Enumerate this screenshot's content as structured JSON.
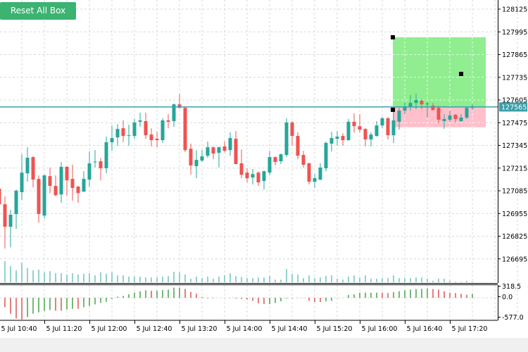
{
  "toolbar": {
    "reset_button_label": "Reset All Box"
  },
  "colors": {
    "bull": "#26a69a",
    "bear": "#ef5350",
    "volume": "#26a69a",
    "osc_up": "#1a8a1a",
    "osc_down": "#d62828",
    "price_line": "#3a9fa8",
    "buy_box": "#90ee90",
    "sell_box": "#ffc0cb",
    "button": "#3cb371",
    "grid": "#d8d8d8"
  },
  "chart_data": {
    "type": "candlestick",
    "timeframe_minutes": 5,
    "first_bar_time": "5 Jul 10:40",
    "price_axis": {
      "ticks": [
        "128125",
        "127995",
        "127865",
        "127735",
        "127605",
        "127475",
        "127345",
        "127215",
        "127085",
        "126955",
        "126825",
        "126695"
      ],
      "top": 128125,
      "step": 130
    },
    "current_price": {
      "value": 127565,
      "label": "127565"
    },
    "time_labels": [
      "5 Jul 10:40",
      "5 Jul 11:20",
      "5 Jul 12:00",
      "5 Jul 12:40",
      "5 Jul 13:20",
      "5 Jul 14:00",
      "5 Jul 14:40",
      "5 Jul 15:20",
      "5 Jul 16:00",
      "5 Jul 16:40",
      "5 Jul 17:20"
    ],
    "ohlc": [
      [
        127097,
        127121,
        126968,
        127008
      ],
      [
        127008,
        127052,
        126754,
        126879
      ],
      [
        126879,
        126976,
        126762,
        126948
      ],
      [
        126952,
        127093,
        126867,
        127085
      ],
      [
        127077,
        127294,
        127032,
        127189
      ],
      [
        127185,
        127334,
        127137,
        127274
      ],
      [
        127278,
        127282,
        127105,
        127149
      ],
      [
        127153,
        127173,
        126903,
        126952
      ],
      [
        126943,
        127178,
        126927,
        127173
      ],
      [
        127169,
        127218,
        127072,
        127113
      ],
      [
        127113,
        127173,
        127052,
        127060
      ],
      [
        127064,
        127250,
        127016,
        127222
      ],
      [
        127222,
        127226,
        127056,
        127145
      ],
      [
        127153,
        127234,
        127028,
        127101
      ],
      [
        127109,
        127113,
        127016,
        127072
      ],
      [
        127081,
        127197,
        127077,
        127153
      ],
      [
        127149,
        127310,
        127109,
        127242
      ],
      [
        127250,
        127318,
        127218,
        127252
      ],
      [
        127254,
        127274,
        127145,
        127214
      ],
      [
        127214,
        127395,
        127185,
        127363
      ],
      [
        127363,
        127459,
        127314,
        127387
      ],
      [
        127391,
        127467,
        127343,
        127439
      ],
      [
        127443,
        127488,
        127363,
        127399
      ],
      [
        127399,
        127463,
        127343,
        127403
      ],
      [
        127399,
        127496,
        127383,
        127476
      ],
      [
        127480,
        127532,
        127451,
        127488
      ],
      [
        127484,
        127532,
        127383,
        127403
      ],
      [
        127407,
        127443,
        127339,
        127375
      ],
      [
        127383,
        127423,
        127334,
        127375
      ],
      [
        127375,
        127500,
        127359,
        127488
      ],
      [
        127488,
        127524,
        127443,
        127480
      ],
      [
        127484,
        127584,
        127451,
        127580
      ],
      [
        127580,
        127641,
        127556,
        127560
      ],
      [
        127560,
        127564,
        127306,
        127318
      ],
      [
        127326,
        127355,
        127177,
        127230
      ],
      [
        127226,
        127318,
        127157,
        127262
      ],
      [
        127258,
        127318,
        127250,
        127282
      ],
      [
        127286,
        127367,
        127274,
        127334
      ],
      [
        127334,
        127339,
        127266,
        127298
      ],
      [
        127302,
        127339,
        127218,
        127334
      ],
      [
        127339,
        127367,
        127306,
        127314
      ],
      [
        127318,
        127419,
        127286,
        127387
      ],
      [
        127383,
        127427,
        127238,
        127238
      ],
      [
        127242,
        127322,
        127157,
        127177
      ],
      [
        127189,
        127214,
        127133,
        127157
      ],
      [
        127161,
        127210,
        127121,
        127181
      ],
      [
        127189,
        127197,
        127113,
        127133
      ],
      [
        127141,
        127201,
        127093,
        127197
      ],
      [
        127189,
        127314,
        127173,
        127278
      ],
      [
        127278,
        127282,
        127230,
        127250
      ],
      [
        127254,
        127298,
        127238,
        127294
      ],
      [
        127290,
        127500,
        127278,
        127476
      ],
      [
        127476,
        127484,
        127343,
        127399
      ],
      [
        127399,
        127419,
        127266,
        127286
      ],
      [
        127290,
        127314,
        127218,
        127234
      ],
      [
        127242,
        127246,
        127121,
        127137
      ],
      [
        127137,
        127181,
        127101,
        127157
      ],
      [
        127149,
        127242,
        127145,
        127218
      ],
      [
        127214,
        127367,
        127197,
        127359
      ],
      [
        127355,
        127423,
        127310,
        127387
      ],
      [
        127383,
        127427,
        127343,
        127395
      ],
      [
        127399,
        127415,
        127343,
        127375
      ],
      [
        127375,
        127496,
        127371,
        127480
      ],
      [
        127480,
        127528,
        127419,
        127455
      ],
      [
        127455,
        127524,
        127419,
        127435
      ],
      [
        127439,
        127443,
        127339,
        127379
      ],
      [
        127379,
        127419,
        127339,
        127407
      ],
      [
        127399,
        127484,
        127395,
        127459
      ],
      [
        127459,
        127508,
        127443,
        127500
      ],
      [
        127500,
        127508,
        127379,
        127403
      ],
      [
        127403,
        127536,
        127359,
        127488
      ],
      [
        127480,
        127560,
        127435,
        127544
      ],
      [
        127544,
        127592,
        127524,
        127564
      ],
      [
        127568,
        127633,
        127544,
        127588
      ],
      [
        127588,
        127641,
        127552,
        127605
      ],
      [
        127601,
        127609,
        127552,
        127580
      ],
      [
        127580,
        127596,
        127504,
        127584
      ],
      [
        127572,
        127588,
        127544,
        127548
      ],
      [
        127560,
        127572,
        127472,
        127492
      ],
      [
        127484,
        127524,
        127439,
        127496
      ],
      [
        127492,
        127544,
        127480,
        127516
      ],
      [
        127520,
        127524,
        127476,
        127496
      ],
      [
        127484,
        127524,
        127480,
        127504
      ],
      [
        127504,
        127564,
        127496,
        127560
      ],
      [
        127560,
        127580,
        127548,
        127565
      ]
    ],
    "volume_relative": [
      80,
      100,
      77,
      57,
      93,
      67,
      57,
      60,
      47,
      53,
      43,
      43,
      37,
      43,
      37,
      40,
      43,
      33,
      47,
      40,
      47,
      33,
      33,
      27,
      27,
      27,
      23,
      23,
      23,
      27,
      30,
      50,
      47,
      37,
      17,
      27,
      20,
      27,
      17,
      27,
      33,
      43,
      30,
      25,
      20,
      20,
      23,
      23,
      30,
      13,
      13,
      63,
      40,
      37,
      20,
      33,
      20,
      23,
      30,
      33,
      17,
      13,
      27,
      33,
      23,
      33,
      17,
      17,
      20,
      20,
      33,
      20,
      20,
      20,
      23,
      23,
      17,
      7,
      17,
      17,
      7,
      3,
      3,
      7,
      3
    ],
    "oscillator": {
      "axis_labels": [
        "318.5",
        "0.0",
        "-577.0"
      ],
      "max": 318.5,
      "min": -577.0,
      "values": [
        0,
        -250,
        -424,
        -548,
        -574,
        -511,
        -424,
        -386,
        -349,
        -324,
        -343,
        -343,
        -312,
        -293,
        -293,
        -250,
        -218,
        -175,
        -137,
        -106,
        -31,
        31,
        50,
        94,
        137,
        175,
        200,
        187,
        187,
        206,
        218,
        268,
        268,
        237,
        156,
        106,
        25,
        -12,
        -12,
        0,
        0,
        -5,
        -19,
        -30,
        -44,
        -81,
        -144,
        -168,
        -168,
        -137,
        -94,
        -19,
        -10,
        -5,
        -5,
        -81,
        -112,
        -112,
        -94,
        -81,
        -5,
        0,
        75,
        94,
        137,
        137,
        137,
        137,
        137,
        125,
        150,
        175,
        200,
        218,
        231,
        237,
        250,
        231,
        218,
        175,
        137,
        125,
        106,
        81,
        106
      ],
      "colors": [
        "g",
        "r",
        "r",
        "r",
        "r",
        "g",
        "g",
        "g",
        "g",
        "g",
        "r",
        "r",
        "g",
        "g",
        "r",
        "g",
        "g",
        "g",
        "g",
        "g",
        "g",
        "g",
        "g",
        "g",
        "g",
        "g",
        "g",
        "r",
        "g",
        "g",
        "g",
        "g",
        "g",
        "r",
        "r",
        "r",
        "r",
        "r",
        "g",
        "g",
        "g",
        "r",
        "r",
        "r",
        "r",
        "r",
        "r",
        "r",
        "g",
        "g",
        "g",
        "g",
        "g",
        "g",
        "r",
        "r",
        "r",
        "r",
        "g",
        "g",
        "g",
        "g",
        "g",
        "g",
        "g",
        "g",
        "g",
        "g",
        "r",
        "r",
        "g",
        "g",
        "g",
        "g",
        "g",
        "g",
        "g",
        "r",
        "r",
        "r",
        "r",
        "r",
        "r",
        "r",
        "g"
      ]
    },
    "boxes": [
      {
        "type": "buy",
        "start_time": "5 Jul 16:30",
        "price_top": 127964,
        "price_bottom": 127565
      },
      {
        "type": "sell",
        "start_time": "5 Jul 16:30",
        "price_top": 127565,
        "price_bottom": 127449
      }
    ],
    "grid": true
  }
}
